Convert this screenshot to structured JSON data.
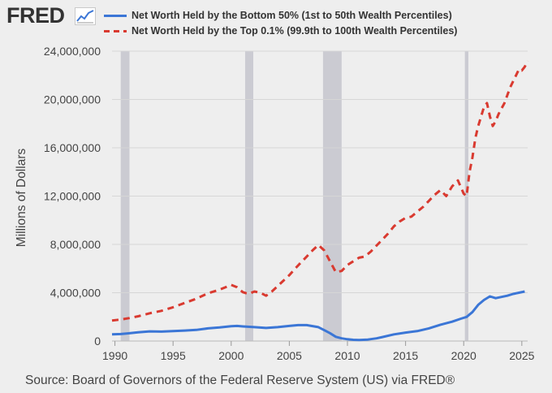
{
  "header": {
    "logo_text": "FRED",
    "logo_icon": "line-chart-icon"
  },
  "source_note": "Source: Board of Governors of the Federal Reserve System (US) via FRED®",
  "colors": {
    "background": "#eeeeee",
    "bottom50_series": "#3b76d6",
    "top01_series": "#d93a30",
    "recession_band": "#c4c4cc",
    "gridline": "#d6d6d6"
  },
  "chart_data": {
    "type": "line",
    "title": "",
    "xlabel": "",
    "ylabel": "Millions of Dollars",
    "xlim": [
      1989.75,
      2025.5
    ],
    "ylim": [
      0,
      24000000
    ],
    "grid": true,
    "legend_position": "top",
    "y_ticks": [
      0,
      4000000,
      8000000,
      12000000,
      16000000,
      20000000,
      24000000
    ],
    "y_tick_labels": [
      "0",
      "4,000,000",
      "8,000,000",
      "12,000,000",
      "16,000,000",
      "20,000,000",
      "24,000,000"
    ],
    "x_ticks": [
      1990,
      1995,
      2000,
      2005,
      2010,
      2015,
      2020,
      2025
    ],
    "x_tick_labels": [
      "1990",
      "1995",
      "2000",
      "2005",
      "2010",
      "2015",
      "2020",
      "2025"
    ],
    "recessions": [
      [
        1990.5,
        1991.25
      ],
      [
        2001.2,
        2001.9
      ],
      [
        2007.9,
        2009.5
      ],
      [
        2020.1,
        2020.4
      ]
    ],
    "series": [
      {
        "name": "Net Worth Held by the Bottom 50% (1st to 50th Wealth Percentiles)",
        "style": "solid",
        "color": "#3b76d6",
        "points": [
          [
            1989.75,
            550000
          ],
          [
            1990.5,
            580000
          ],
          [
            1991,
            620000
          ],
          [
            1992,
            720000
          ],
          [
            1993,
            800000
          ],
          [
            1994,
            780000
          ],
          [
            1995,
            820000
          ],
          [
            1996,
            870000
          ],
          [
            1997,
            920000
          ],
          [
            1998,
            1050000
          ],
          [
            1999,
            1120000
          ],
          [
            2000,
            1230000
          ],
          [
            2000.5,
            1250000
          ],
          [
            2001,
            1210000
          ],
          [
            2002,
            1150000
          ],
          [
            2003,
            1080000
          ],
          [
            2004,
            1150000
          ],
          [
            2005,
            1250000
          ],
          [
            2005.75,
            1320000
          ],
          [
            2006.5,
            1320000
          ],
          [
            2007.5,
            1150000
          ],
          [
            2008,
            900000
          ],
          [
            2008.5,
            650000
          ],
          [
            2009,
            350000
          ],
          [
            2009.5,
            220000
          ],
          [
            2010,
            150000
          ],
          [
            2010.5,
            100000
          ],
          [
            2011,
            80000
          ],
          [
            2011.75,
            120000
          ],
          [
            2012.5,
            220000
          ],
          [
            2013,
            330000
          ],
          [
            2014,
            550000
          ],
          [
            2015,
            700000
          ],
          [
            2016,
            820000
          ],
          [
            2017,
            1050000
          ],
          [
            2018,
            1350000
          ],
          [
            2019,
            1600000
          ],
          [
            2019.75,
            1850000
          ],
          [
            2020.25,
            2000000
          ],
          [
            2020.75,
            2400000
          ],
          [
            2021.25,
            3000000
          ],
          [
            2021.75,
            3400000
          ],
          [
            2022.25,
            3700000
          ],
          [
            2022.75,
            3550000
          ],
          [
            2023.25,
            3650000
          ],
          [
            2023.75,
            3750000
          ],
          [
            2024.25,
            3900000
          ],
          [
            2024.75,
            4000000
          ],
          [
            2025.25,
            4100000
          ]
        ]
      },
      {
        "name": "Net Worth Held by the Top 0.1% (99.9th to 100th Wealth Percentiles)",
        "style": "dashed",
        "color": "#d93a30",
        "points": [
          [
            1989.75,
            1700000
          ],
          [
            1990.5,
            1780000
          ],
          [
            1991.25,
            1900000
          ],
          [
            1992,
            2050000
          ],
          [
            1993,
            2300000
          ],
          [
            1994,
            2500000
          ],
          [
            1995,
            2800000
          ],
          [
            1996,
            3150000
          ],
          [
            1997,
            3500000
          ],
          [
            1998,
            3950000
          ],
          [
            1999,
            4250000
          ],
          [
            2000,
            4650000
          ],
          [
            2000.5,
            4450000
          ],
          [
            2001,
            4050000
          ],
          [
            2001.5,
            3900000
          ],
          [
            2002,
            4100000
          ],
          [
            2002.5,
            4000000
          ],
          [
            2003,
            3750000
          ],
          [
            2003.5,
            4100000
          ],
          [
            2004,
            4550000
          ],
          [
            2004.5,
            5000000
          ],
          [
            2005,
            5450000
          ],
          [
            2005.5,
            6000000
          ],
          [
            2006,
            6500000
          ],
          [
            2006.5,
            7000000
          ],
          [
            2007,
            7500000
          ],
          [
            2007.5,
            7950000
          ],
          [
            2008,
            7500000
          ],
          [
            2008.5,
            6600000
          ],
          [
            2009,
            5700000
          ],
          [
            2009.5,
            5800000
          ],
          [
            2010,
            6300000
          ],
          [
            2010.5,
            6600000
          ],
          [
            2011,
            6900000
          ],
          [
            2011.5,
            7000000
          ],
          [
            2012,
            7400000
          ],
          [
            2012.5,
            7900000
          ],
          [
            2013,
            8400000
          ],
          [
            2013.5,
            8900000
          ],
          [
            2014,
            9500000
          ],
          [
            2014.5,
            9900000
          ],
          [
            2015,
            10200000
          ],
          [
            2015.5,
            10300000
          ],
          [
            2016,
            10700000
          ],
          [
            2016.5,
            11100000
          ],
          [
            2017,
            11600000
          ],
          [
            2017.5,
            12100000
          ],
          [
            2018,
            12500000
          ],
          [
            2018.5,
            12000000
          ],
          [
            2019,
            12800000
          ],
          [
            2019.5,
            13300000
          ],
          [
            2020,
            12200000
          ],
          [
            2020.25,
            12000000
          ],
          [
            2020.5,
            14000000
          ],
          [
            2020.75,
            15200000
          ],
          [
            2021,
            16800000
          ],
          [
            2021.25,
            17800000
          ],
          [
            2021.5,
            18600000
          ],
          [
            2021.75,
            19400000
          ],
          [
            2022,
            19700000
          ],
          [
            2022.25,
            18600000
          ],
          [
            2022.5,
            17800000
          ],
          [
            2022.75,
            18200000
          ],
          [
            2023,
            18800000
          ],
          [
            2023.5,
            19700000
          ],
          [
            2024,
            21000000
          ],
          [
            2024.5,
            22000000
          ],
          [
            2024.75,
            22500000
          ],
          [
            2025,
            22400000
          ],
          [
            2025.25,
            22700000
          ],
          [
            2025.5,
            23200000
          ]
        ]
      }
    ]
  }
}
